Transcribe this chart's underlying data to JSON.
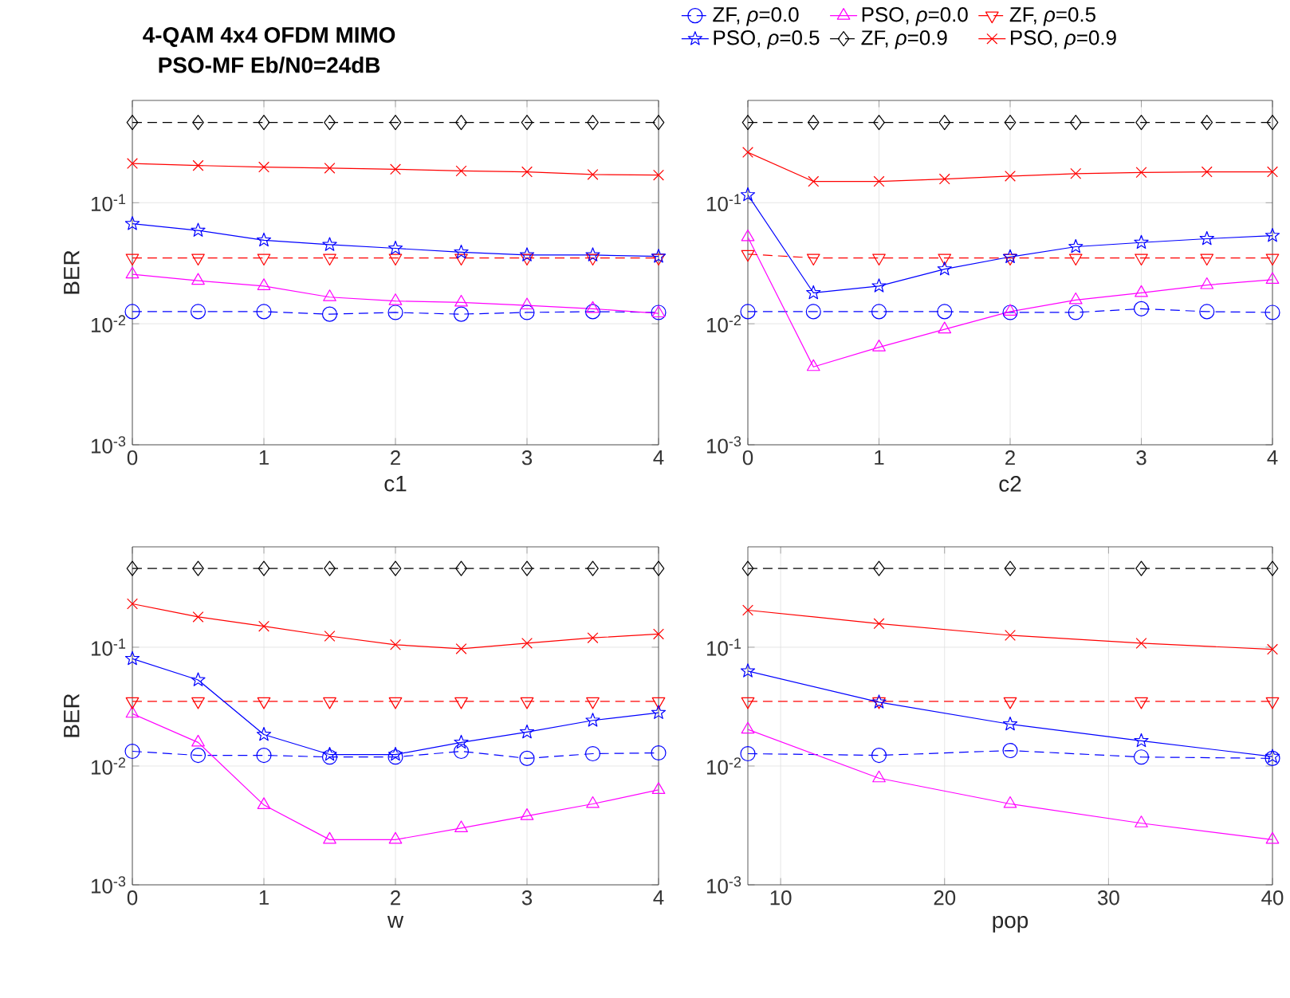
{
  "chart_data": [
    {
      "type": "line",
      "title": "4-QAM 4x4 OFDM MIMO",
      "subtitle": "PSO-MF Eb/N0=24dB",
      "xlabel": "c1",
      "ylabel": "BER",
      "log": "y",
      "grid": true,
      "legend": "top",
      "x": [
        0,
        0.5,
        1,
        1.5,
        2,
        2.5,
        3,
        3.5,
        4
      ],
      "xlim": [
        0,
        4
      ],
      "xticks": [
        0,
        1,
        2,
        3,
        4
      ],
      "ylim": [
        0.001,
        0.7
      ],
      "yticks": [
        {
          "value": 0.001,
          "label": "10$^{-3}$"
        },
        {
          "value": 0.01,
          "label": "10$^{-2}$"
        },
        {
          "value": 0.1,
          "label": "10$^{-1}$"
        }
      ],
      "series": [
        {
          "name": "ZF, *ρ*=0.0",
          "color": "#0000ff",
          "marker": "circle",
          "line_style": "dashed",
          "values": [
            0.0126,
            0.0126,
            0.0126,
            0.012,
            0.0124,
            0.012,
            0.0124,
            0.0126,
            0.0124
          ]
        },
        {
          "name": "PSO, *ρ*=0.0",
          "color": "#ff00ff",
          "marker": "triangle",
          "line_style": "solid",
          "values": [
            0.0256,
            0.0227,
            0.0205,
            0.0166,
            0.0154,
            0.015,
            0.0142,
            0.0133,
            0.0122
          ]
        },
        {
          "name": "ZF, *ρ*=0.5",
          "color": "#ff0000",
          "marker": "triangle_down",
          "line_style": "dashed",
          "values": [
            0.035,
            0.035,
            0.035,
            0.035,
            0.035,
            0.035,
            0.035,
            0.035,
            0.035
          ]
        },
        {
          "name": "PSO, *ρ*=0.5",
          "color": "#0000ff",
          "marker": "star",
          "line_style": "solid",
          "values": [
            0.067,
            0.059,
            0.049,
            0.045,
            0.042,
            0.039,
            0.037,
            0.037,
            0.036
          ]
        },
        {
          "name": "ZF, *ρ*=0.9",
          "color": "#000000",
          "marker": "diamond",
          "line_style": "dashed",
          "values": [
            0.46,
            0.46,
            0.46,
            0.46,
            0.46,
            0.46,
            0.46,
            0.46,
            0.46
          ]
        },
        {
          "name": "PSO, *ρ*=0.9",
          "color": "#ff0000",
          "marker": "cross",
          "line_style": "solid",
          "values": [
            0.211,
            0.203,
            0.197,
            0.193,
            0.189,
            0.183,
            0.18,
            0.171,
            0.169
          ]
        }
      ]
    },
    {
      "type": "line",
      "xlabel": "c2",
      "log": "y",
      "grid": true,
      "x": [
        0,
        0.5,
        1,
        1.5,
        2,
        2.5,
        3,
        3.5,
        4
      ],
      "xlim": [
        0,
        4
      ],
      "xticks": [
        0,
        1,
        2,
        3,
        4
      ],
      "ylim": [
        0.001,
        0.7
      ],
      "yticks": [
        {
          "value": 0.001,
          "label": "10$^{-3}$"
        },
        {
          "value": 0.01,
          "label": "10$^{-2}$"
        },
        {
          "value": 0.1,
          "label": "10$^{-1}$"
        }
      ],
      "series": [
        {
          "color": "#0000ff",
          "marker": "circle",
          "line_style": "dashed",
          "values": [
            0.0126,
            0.0126,
            0.0126,
            0.0126,
            0.0124,
            0.0124,
            0.0133,
            0.0126,
            0.0124
          ]
        },
        {
          "color": "#ff00ff",
          "marker": "triangle",
          "line_style": "solid",
          "values": [
            0.052,
            0.0044,
            0.0064,
            0.009,
            0.0126,
            0.0157,
            0.018,
            0.0209,
            0.0231
          ]
        },
        {
          "color": "#ff0000",
          "marker": "triangle_down",
          "line_style": "dashed",
          "values": [
            0.0376,
            0.035,
            0.035,
            0.035,
            0.035,
            0.035,
            0.035,
            0.035,
            0.035
          ]
        },
        {
          "color": "#0000ff",
          "marker": "star",
          "line_style": "solid",
          "values": [
            0.116,
            0.018,
            0.0205,
            0.0283,
            0.0357,
            0.0433,
            0.0469,
            0.0504,
            0.0535
          ]
        },
        {
          "color": "#000000",
          "marker": "diamond",
          "line_style": "dashed",
          "values": [
            0.46,
            0.46,
            0.46,
            0.46,
            0.46,
            0.46,
            0.46,
            0.46,
            0.46
          ]
        },
        {
          "color": "#ff0000",
          "marker": "cross",
          "line_style": "solid",
          "values": [
            0.261,
            0.15,
            0.15,
            0.157,
            0.166,
            0.174,
            0.178,
            0.18,
            0.18
          ]
        }
      ]
    },
    {
      "type": "line",
      "xlabel": "w",
      "ylabel": "BER",
      "log": "y",
      "grid": true,
      "x": [
        0,
        0.5,
        1,
        1.5,
        2,
        2.5,
        3,
        3.5,
        4
      ],
      "xlim": [
        0,
        4
      ],
      "xticks": [
        0,
        1,
        2,
        3,
        4
      ],
      "ylim": [
        0.001,
        0.7
      ],
      "yticks": [
        {
          "value": 0.001,
          "label": "10$^{-3}$"
        },
        {
          "value": 0.01,
          "label": "10$^{-2}$"
        },
        {
          "value": 0.1,
          "label": "10$^{-1}$"
        }
      ],
      "series": [
        {
          "color": "#0000ff",
          "marker": "circle",
          "line_style": "dashed",
          "values": [
            0.0133,
            0.0123,
            0.0123,
            0.0119,
            0.0119,
            0.0133,
            0.0116,
            0.0127,
            0.0129
          ]
        },
        {
          "color": "#ff00ff",
          "marker": "triangle",
          "line_style": "solid",
          "values": [
            0.0276,
            0.0158,
            0.0047,
            0.0024,
            0.0024,
            0.003,
            0.0038,
            0.0048,
            0.0063
          ]
        },
        {
          "color": "#ff0000",
          "marker": "triangle_down",
          "line_style": "dashed",
          "values": [
            0.035,
            0.035,
            0.035,
            0.035,
            0.035,
            0.035,
            0.035,
            0.035,
            0.035
          ]
        },
        {
          "color": "#0000ff",
          "marker": "star",
          "line_style": "solid",
          "values": [
            0.08,
            0.053,
            0.0184,
            0.0125,
            0.0125,
            0.0158,
            0.0193,
            0.0242,
            0.0281
          ]
        },
        {
          "color": "#000000",
          "marker": "diamond",
          "line_style": "dashed",
          "values": [
            0.46,
            0.46,
            0.46,
            0.46,
            0.46,
            0.46,
            0.46,
            0.46,
            0.46
          ]
        },
        {
          "color": "#ff0000",
          "marker": "cross",
          "line_style": "solid",
          "values": [
            0.232,
            0.18,
            0.15,
            0.124,
            0.105,
            0.097,
            0.108,
            0.12,
            0.129
          ]
        }
      ]
    },
    {
      "type": "line",
      "xlabel": "pop",
      "log": "y",
      "grid": true,
      "x": [
        8,
        16,
        24,
        32,
        40
      ],
      "xlim": [
        8,
        40
      ],
      "xticks": [
        10,
        20,
        30,
        40
      ],
      "ylim": [
        0.001,
        0.7
      ],
      "yticks": [
        {
          "value": 0.001,
          "label": "10$^{-3}$"
        },
        {
          "value": 0.01,
          "label": "10$^{-2}$"
        },
        {
          "value": 0.1,
          "label": "10$^{-1}$"
        }
      ],
      "series": [
        {
          "color": "#0000ff",
          "marker": "circle",
          "line_style": "dashed",
          "values": [
            0.0127,
            0.0123,
            0.0135,
            0.0119,
            0.0116
          ]
        },
        {
          "color": "#ff00ff",
          "marker": "triangle",
          "line_style": "solid",
          "values": [
            0.0203,
            0.0079,
            0.0048,
            0.0033,
            0.0024
          ]
        },
        {
          "color": "#ff0000",
          "marker": "triangle_down",
          "line_style": "dashed",
          "values": [
            0.035,
            0.035,
            0.035,
            0.035,
            0.035
          ]
        },
        {
          "color": "#0000ff",
          "marker": "star",
          "line_style": "solid",
          "values": [
            0.063,
            0.0345,
            0.0225,
            0.0163,
            0.012
          ]
        },
        {
          "color": "#000000",
          "marker": "diamond",
          "line_style": "dashed",
          "values": [
            0.46,
            0.46,
            0.46,
            0.46,
            0.46
          ]
        },
        {
          "color": "#ff0000",
          "marker": "cross",
          "line_style": "solid",
          "values": [
            0.205,
            0.158,
            0.126,
            0.108,
            0.096
          ]
        }
      ]
    }
  ]
}
